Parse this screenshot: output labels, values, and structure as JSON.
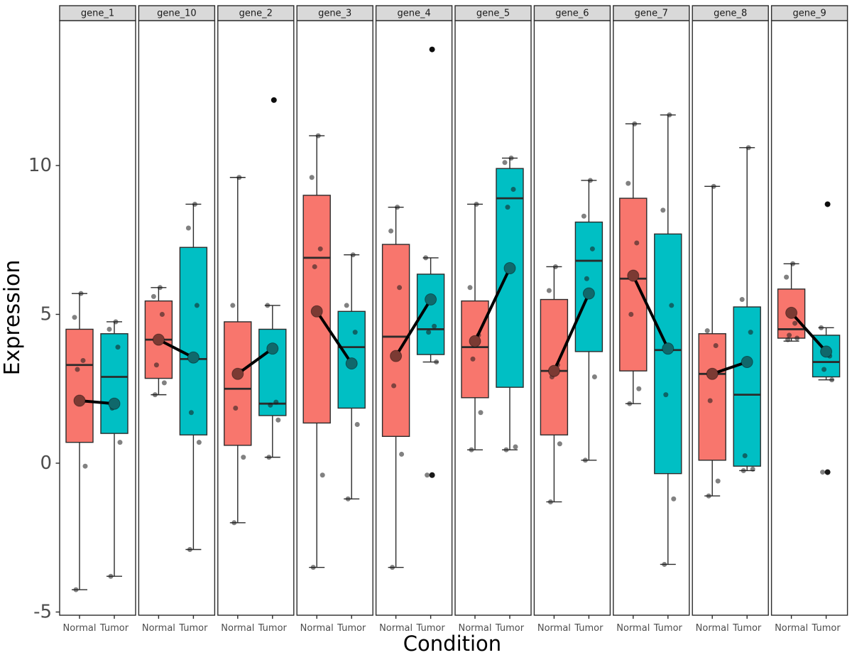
{
  "axes": {
    "y_label": "Expression",
    "x_label": "Condition",
    "y_ticks": [
      10,
      5,
      0,
      -5
    ],
    "y_range_shown": [
      -5.1,
      14.9
    ],
    "x_tick_labels": [
      "Normal",
      "Tumor"
    ],
    "grid": "none"
  },
  "colors": {
    "normal_fill": "#F8766D",
    "tumor_fill": "#00BFC4",
    "normal_mean": "#7B3A33",
    "tumor_mean": "#10686B",
    "box_stroke": "#2b2b2b",
    "median_stroke": "#2b2b2b",
    "mean_line": "#000000",
    "jitter_fill": "#1a1a1a",
    "outlier_fill": "#000000",
    "strip_bg": "#D9D9D9",
    "strip_text": "#1a1a1a",
    "panel_border": "#2b2b2b",
    "panel_bg": "#ffffff",
    "axis_text": "#4d4d4d",
    "axis_title": "#000000"
  },
  "chart_data": {
    "type": "faceted_boxplot",
    "facet_variable": "gene",
    "legend_position": "none",
    "title": "",
    "xlabel": "Condition",
    "ylabel": "Expression",
    "categories": [
      "Normal",
      "Tumor"
    ],
    "facets": [
      {
        "label": "gene_1",
        "groups": [
          {
            "condition": "Normal",
            "min": -4.25,
            "q1": 0.7,
            "median": 3.3,
            "q3": 4.5,
            "max": 5.7,
            "mean": 2.1,
            "points": [
              5.7,
              4.9,
              3.45,
              3.15,
              -0.1,
              -4.25
            ],
            "outliers": []
          },
          {
            "condition": "Tumor",
            "min": -3.8,
            "q1": 1.0,
            "median": 2.9,
            "q3": 4.35,
            "max": 4.75,
            "mean": 2.0,
            "points": [
              4.75,
              4.5,
              3.9,
              1.85,
              0.7,
              -3.8
            ],
            "outliers": []
          }
        ]
      },
      {
        "label": "gene_10",
        "groups": [
          {
            "condition": "Normal",
            "min": 2.3,
            "q1": 2.85,
            "median": 4.15,
            "q3": 5.45,
            "max": 5.9,
            "mean": 4.15,
            "points": [
              5.9,
              5.6,
              5.0,
              3.3,
              2.7,
              2.3
            ],
            "outliers": []
          },
          {
            "condition": "Tumor",
            "min": -2.9,
            "q1": 0.95,
            "median": 3.5,
            "q3": 7.25,
            "max": 8.7,
            "mean": 3.55,
            "points": [
              8.7,
              7.9,
              5.3,
              1.7,
              0.7,
              -2.9
            ],
            "outliers": []
          }
        ]
      },
      {
        "label": "gene_2",
        "groups": [
          {
            "condition": "Normal",
            "min": -2.0,
            "q1": 0.6,
            "median": 2.5,
            "q3": 4.75,
            "max": 9.6,
            "mean": 3.0,
            "points": [
              9.6,
              5.3,
              3.1,
              1.85,
              0.2,
              -2.0
            ],
            "outliers": []
          },
          {
            "condition": "Tumor",
            "min": 0.2,
            "q1": 1.6,
            "median": 2.0,
            "q3": 4.5,
            "max": 5.3,
            "mean": 3.85,
            "points": [
              12.2,
              5.3,
              2.05,
              1.95,
              1.45,
              0.2
            ],
            "outliers": [
              12.2
            ]
          }
        ]
      },
      {
        "label": "gene_3",
        "groups": [
          {
            "condition": "Normal",
            "min": -3.5,
            "q1": 1.35,
            "median": 6.9,
            "q3": 9.0,
            "max": 11.0,
            "mean": 5.1,
            "points": [
              11.0,
              9.6,
              7.2,
              6.6,
              -0.4,
              -3.5
            ],
            "outliers": []
          },
          {
            "condition": "Tumor",
            "min": -1.2,
            "q1": 1.85,
            "median": 3.9,
            "q3": 5.1,
            "max": 7.0,
            "mean": 3.35,
            "points": [
              7.0,
              5.3,
              4.4,
              3.4,
              1.3,
              -1.2
            ],
            "outliers": []
          }
        ]
      },
      {
        "label": "gene_4",
        "groups": [
          {
            "condition": "Normal",
            "min": -3.5,
            "q1": 0.9,
            "median": 4.25,
            "q3": 7.35,
            "max": 8.6,
            "mean": 3.6,
            "points": [
              8.6,
              7.8,
              5.9,
              2.6,
              0.3,
              -3.5
            ],
            "outliers": []
          },
          {
            "condition": "Tumor",
            "min": 3.4,
            "q1": 3.65,
            "median": 4.5,
            "q3": 6.35,
            "max": 6.9,
            "mean": 5.5,
            "points": [
              13.9,
              6.9,
              4.6,
              4.4,
              3.4,
              -0.4
            ],
            "outliers": [
              13.9,
              -0.4
            ]
          }
        ]
      },
      {
        "label": "gene_5",
        "groups": [
          {
            "condition": "Normal",
            "min": 0.45,
            "q1": 2.2,
            "median": 3.9,
            "q3": 5.45,
            "max": 8.7,
            "mean": 4.1,
            "points": [
              8.7,
              5.9,
              4.3,
              3.5,
              1.7,
              0.45
            ],
            "outliers": []
          },
          {
            "condition": "Tumor",
            "min": 0.45,
            "q1": 2.55,
            "median": 8.9,
            "q3": 9.9,
            "max": 10.25,
            "mean": 6.55,
            "points": [
              10.25,
              10.1,
              9.2,
              8.6,
              0.55,
              0.45
            ],
            "outliers": []
          }
        ]
      },
      {
        "label": "gene_6",
        "groups": [
          {
            "condition": "Normal",
            "min": -1.3,
            "q1": 0.95,
            "median": 3.1,
            "q3": 5.5,
            "max": 6.6,
            "mean": 3.1,
            "points": [
              6.6,
              5.8,
              3.3,
              2.9,
              0.65,
              -1.3
            ],
            "outliers": []
          },
          {
            "condition": "Tumor",
            "min": 0.1,
            "q1": 3.75,
            "median": 6.8,
            "q3": 8.1,
            "max": 9.5,
            "mean": 5.7,
            "points": [
              9.5,
              8.3,
              7.2,
              6.2,
              2.9,
              0.1
            ],
            "outliers": []
          }
        ]
      },
      {
        "label": "gene_7",
        "groups": [
          {
            "condition": "Normal",
            "min": 2.0,
            "q1": 3.1,
            "median": 6.2,
            "q3": 8.9,
            "max": 11.4,
            "mean": 6.3,
            "points": [
              11.4,
              9.4,
              7.4,
              5.0,
              2.5,
              2.0
            ],
            "outliers": []
          },
          {
            "condition": "Tumor",
            "min": -3.4,
            "q1": -0.35,
            "median": 3.8,
            "q3": 7.7,
            "max": 11.7,
            "mean": 3.85,
            "points": [
              11.7,
              8.5,
              5.3,
              2.3,
              -1.2,
              -3.4
            ],
            "outliers": []
          }
        ]
      },
      {
        "label": "gene_8",
        "groups": [
          {
            "condition": "Normal",
            "min": -1.1,
            "q1": 0.1,
            "median": 3.0,
            "q3": 4.35,
            "max": 9.3,
            "mean": 3.0,
            "points": [
              9.3,
              4.45,
              3.95,
              2.1,
              -0.6,
              -1.1
            ],
            "outliers": []
          },
          {
            "condition": "Tumor",
            "min": -0.25,
            "q1": -0.1,
            "median": 2.3,
            "q3": 5.25,
            "max": 10.6,
            "mean": 3.4,
            "points": [
              10.6,
              5.5,
              4.4,
              0.25,
              -0.2,
              -0.25
            ],
            "outliers": []
          }
        ]
      },
      {
        "label": "gene_9",
        "groups": [
          {
            "condition": "Normal",
            "min": 4.1,
            "q1": 4.2,
            "median": 4.5,
            "q3": 5.85,
            "max": 6.7,
            "mean": 5.05,
            "points": [
              6.7,
              6.25,
              4.7,
              4.3,
              4.2,
              4.15
            ],
            "outliers": []
          },
          {
            "condition": "Tumor",
            "min": 2.8,
            "q1": 2.9,
            "median": 3.4,
            "q3": 4.3,
            "max": 4.55,
            "mean": 3.75,
            "points": [
              8.7,
              4.55,
              3.6,
              3.15,
              2.8,
              -0.3
            ],
            "outliers": [
              8.7,
              -0.3
            ]
          }
        ]
      }
    ]
  }
}
